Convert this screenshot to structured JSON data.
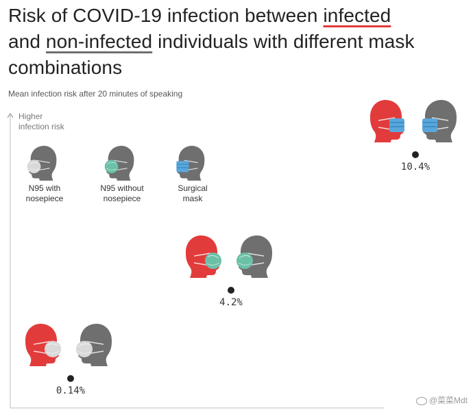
{
  "title": {
    "part1": "Risk of COVID-19 infection between ",
    "highlight1": "infected",
    "part2": "and ",
    "highlight2": "non-infected",
    "part3": " individuals with different mask combinations"
  },
  "subtitle": "Mean infection risk after 20 minutes of speaking",
  "colors": {
    "infected": "#e23b3b",
    "non_infected": "#6f6f6f",
    "n95_mask": "#d9d9d9",
    "n95_no_nosepiece_mask": "#6cc0a8",
    "surgical_mask": "#5aa7dc",
    "point": "#222222"
  },
  "legend": [
    {
      "label_line1": "N95 with",
      "label_line2": "nosepiece",
      "mask": "n95",
      "icon": "head-n95-icon"
    },
    {
      "label_line1": "N95 without",
      "label_line2": "nosepiece",
      "mask": "n95-no-nosepiece",
      "icon": "head-n95-no-nosepiece-icon"
    },
    {
      "label_line1": "Surgical",
      "label_line2": "mask",
      "mask": "surgical",
      "icon": "head-surgical-mask-icon"
    }
  ],
  "chart_data": {
    "type": "scatter",
    "ylabel_line1": "Higher",
    "ylabel_line2": "infection risk",
    "y_unit": "%",
    "points": [
      {
        "mask": "n95",
        "value": 0.14,
        "label": "0.14%"
      },
      {
        "mask": "n95-no-nosepiece",
        "value": 4.2,
        "label": "4.2%"
      },
      {
        "mask": "surgical",
        "value": 10.4,
        "label": "10.4%"
      }
    ]
  },
  "watermark": "@菜菜Mdt"
}
